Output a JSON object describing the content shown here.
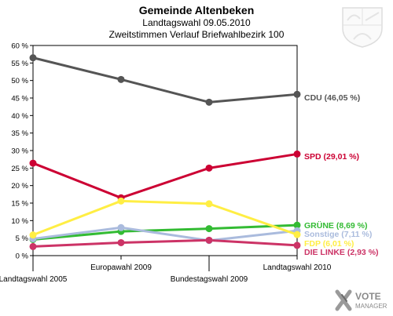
{
  "header": {
    "title": "Gemeinde Altenbeken",
    "subtitle": "Landtagswahl 09.05.2010",
    "subtitle2": "Zweitstimmen Verlauf Briefwahlbezirk 100"
  },
  "logo": {
    "line1": "VOTE",
    "line2": "MANAGER",
    "icon": "vote-manager-x-icon"
  },
  "crest": {
    "icon": "nrw-coat-of-arms-icon"
  },
  "chart_data": {
    "type": "line",
    "title": "Zweitstimmen Verlauf Briefwahlbezirk 100",
    "categories": [
      "Landtagswahl 2005",
      "Europawahl 2009",
      "Bundestagswahl 2009",
      "Landtagswahl 2010"
    ],
    "ylim": [
      0,
      60
    ],
    "yticks": [
      0,
      5,
      10,
      15,
      20,
      25,
      30,
      35,
      40,
      45,
      50,
      55,
      60
    ],
    "ytick_labels": [
      "0 %",
      "5 %",
      "10 %",
      "15 %",
      "20 %",
      "25 %",
      "30 %",
      "35 %",
      "40 %",
      "45 %",
      "50 %",
      "55 %",
      "60 %"
    ],
    "grid": false,
    "series": [
      {
        "name": "CDU",
        "end_label": "CDU (46,05 %)",
        "color": "#555555",
        "values": [
          56.5,
          50.3,
          43.8,
          46.05
        ]
      },
      {
        "name": "SPD",
        "end_label": "SPD (29,01 %)",
        "color": "#cc0033",
        "values": [
          26.4,
          16.5,
          25.0,
          29.01
        ]
      },
      {
        "name": "GRÜNE",
        "end_label": "GRÜNE (8,69 %)",
        "color": "#33bb33",
        "values": [
          4.6,
          6.9,
          7.7,
          8.69
        ]
      },
      {
        "name": "Sonstige",
        "end_label": "Sonstige (7,11 %)",
        "color": "#aabbdd",
        "values": [
          4.8,
          8.0,
          4.3,
          7.11
        ]
      },
      {
        "name": "FDP",
        "end_label": "FDP (6,01 %)",
        "color": "#ffee44",
        "values": [
          5.9,
          15.6,
          14.8,
          6.01
        ]
      },
      {
        "name": "DIE LINKE",
        "end_label": "DIE LINKE (2,93 %)",
        "color": "#cc3366",
        "values": [
          2.6,
          3.7,
          4.4,
          2.93
        ]
      }
    ]
  }
}
